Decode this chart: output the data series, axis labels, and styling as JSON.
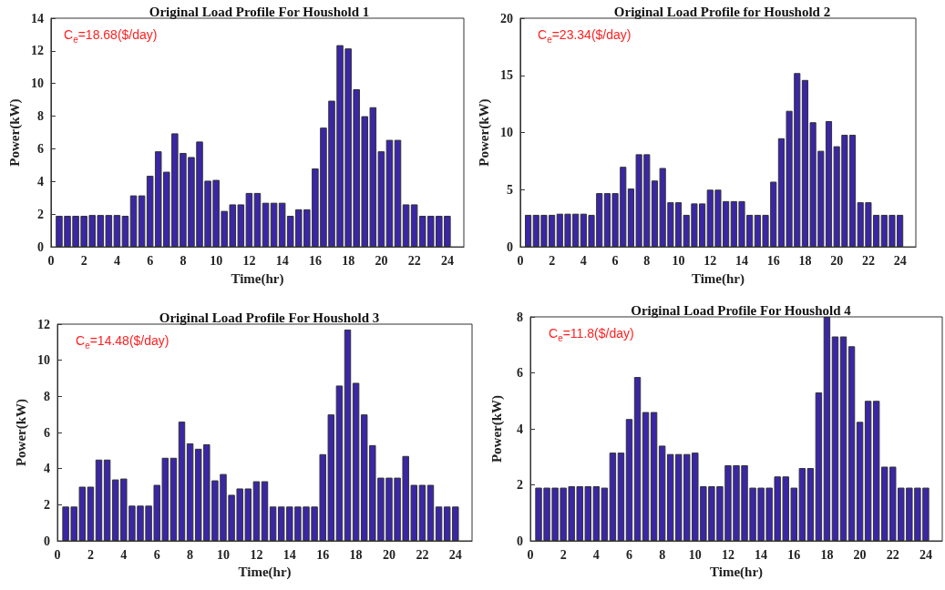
{
  "chart_data": [
    {
      "type": "bar",
      "title": "Original Load Profile For Houshold 1",
      "xlabel": "Time(hr)",
      "ylabel": "Power(kW)",
      "annotations": [
        "C$_{e}$=18.68($/day)"
      ],
      "color": "#3a26a6",
      "xlim": [
        0,
        25
      ],
      "xticks": [
        0,
        2,
        4,
        6,
        8,
        10,
        12,
        14,
        16,
        18,
        20,
        22,
        24
      ],
      "ylim": [
        0,
        14
      ],
      "yticks": [
        0,
        2,
        4,
        6,
        8,
        10,
        12,
        14
      ],
      "grid": false,
      "x": [
        0.5,
        1,
        1.5,
        2,
        2.5,
        3,
        3.5,
        4,
        4.5,
        5,
        5.5,
        6,
        6.5,
        7,
        7.5,
        8,
        8.5,
        9,
        9.5,
        10,
        10.5,
        11,
        11.5,
        12,
        12.5,
        13,
        13.5,
        14,
        14.5,
        15,
        15.5,
        16,
        16.5,
        17,
        17.5,
        18,
        18.5,
        19,
        19.5,
        20,
        20.5,
        21,
        21.5,
        22,
        22.5,
        23,
        23.5,
        24
      ],
      "values": [
        1.9,
        1.9,
        1.9,
        1.9,
        1.95,
        1.95,
        1.95,
        1.95,
        1.9,
        3.15,
        3.15,
        4.35,
        5.85,
        4.6,
        6.95,
        5.75,
        5.5,
        6.45,
        4.05,
        4.1,
        2.2,
        2.6,
        2.6,
        3.3,
        3.3,
        2.7,
        2.7,
        2.7,
        1.9,
        2.3,
        2.3,
        4.8,
        7.3,
        8.95,
        12.35,
        12.15,
        9.65,
        8.0,
        8.55,
        5.85,
        6.55,
        6.55,
        2.6,
        2.6,
        1.9,
        1.9,
        1.9,
        1.9
      ]
    },
    {
      "type": "bar",
      "title": "Original Load Profile for Houshold 2",
      "xlabel": "Time(hr)",
      "ylabel": "Power(kW)",
      "annotations": [
        "C$_{e}$=23.34($/day)"
      ],
      "color": "#3a26a6",
      "xlim": [
        0,
        25
      ],
      "xticks": [
        0,
        2,
        4,
        6,
        8,
        10,
        12,
        14,
        16,
        18,
        20,
        22,
        24
      ],
      "ylim": [
        0,
        20
      ],
      "yticks": [
        0,
        5,
        10,
        15,
        20
      ],
      "grid": false,
      "x": [
        0.5,
        1,
        1.5,
        2,
        2.5,
        3,
        3.5,
        4,
        4.5,
        5,
        5.5,
        6,
        6.5,
        7,
        7.5,
        8,
        8.5,
        9,
        9.5,
        10,
        10.5,
        11,
        11.5,
        12,
        12.5,
        13,
        13.5,
        14,
        14.5,
        15,
        15.5,
        16,
        16.5,
        17,
        17.5,
        18,
        18.5,
        19,
        19.5,
        20,
        20.5,
        21,
        21.5,
        22,
        22.5,
        23,
        23.5,
        24
      ],
      "values": [
        2.8,
        2.8,
        2.8,
        2.8,
        2.9,
        2.9,
        2.9,
        2.9,
        2.8,
        4.7,
        4.7,
        4.7,
        7.0,
        5.1,
        8.1,
        8.1,
        5.8,
        6.9,
        3.9,
        3.9,
        2.8,
        3.8,
        3.8,
        5.0,
        5.0,
        4.0,
        4.0,
        4.0,
        2.8,
        2.8,
        2.8,
        5.7,
        9.5,
        11.9,
        15.2,
        14.6,
        10.9,
        8.4,
        11.0,
        8.8,
        9.8,
        9.8,
        3.9,
        3.9,
        2.8,
        2.8,
        2.8,
        2.8
      ]
    },
    {
      "type": "bar",
      "title": "Original Load Profile For Houshold 3",
      "xlabel": "Time(hr)",
      "ylabel": "Power(kW)",
      "annotations": [
        "C$_{e}$=14.48($/day)"
      ],
      "color": "#3a26a6",
      "xlim": [
        0,
        25
      ],
      "xticks": [
        0,
        2,
        4,
        6,
        8,
        10,
        12,
        14,
        16,
        18,
        20,
        22,
        24
      ],
      "ylim": [
        0,
        12
      ],
      "yticks": [
        0,
        2,
        4,
        6,
        8,
        10,
        12
      ],
      "grid": false,
      "x": [
        0.5,
        1,
        1.5,
        2,
        2.5,
        3,
        3.5,
        4,
        4.5,
        5,
        5.5,
        6,
        6.5,
        7,
        7.5,
        8,
        8.5,
        9,
        9.5,
        10,
        10.5,
        11,
        11.5,
        12,
        12.5,
        13,
        13.5,
        14,
        14.5,
        15,
        15.5,
        16,
        16.5,
        17,
        17.5,
        18,
        18.5,
        19,
        19.5,
        20,
        20.5,
        21,
        21.5,
        22,
        22.5,
        23,
        23.5,
        24
      ],
      "values": [
        1.9,
        1.9,
        3.0,
        3.0,
        4.5,
        4.5,
        3.4,
        3.45,
        1.95,
        1.95,
        1.95,
        3.1,
        4.6,
        4.6,
        6.6,
        5.4,
        5.1,
        5.35,
        3.35,
        3.7,
        2.55,
        2.9,
        2.9,
        3.3,
        3.3,
        1.9,
        1.9,
        1.9,
        1.9,
        1.9,
        1.9,
        4.8,
        7.0,
        8.6,
        11.7,
        8.75,
        7.0,
        5.3,
        3.5,
        3.5,
        3.5,
        4.7,
        3.1,
        3.1,
        3.1,
        1.9,
        1.9,
        1.9
      ]
    },
    {
      "type": "bar",
      "title": "Original Load Profile For Houshold 4",
      "xlabel": "Time(hr)",
      "ylabel": "Power(kW)",
      "annotations": [
        "C$_{e}$=11.8($/day)"
      ],
      "color": "#3a26a6",
      "xlim": [
        0,
        25
      ],
      "xticks": [
        0,
        2,
        4,
        6,
        8,
        10,
        12,
        14,
        16,
        18,
        20,
        22,
        24
      ],
      "ylim": [
        0,
        8
      ],
      "yticks": [
        0,
        2,
        4,
        6,
        8
      ],
      "grid": false,
      "x": [
        0.5,
        1,
        1.5,
        2,
        2.5,
        3,
        3.5,
        4,
        4.5,
        5,
        5.5,
        6,
        6.5,
        7,
        7.5,
        8,
        8.5,
        9,
        9.5,
        10,
        10.5,
        11,
        11.5,
        12,
        12.5,
        13,
        13.5,
        14,
        14.5,
        15,
        15.5,
        16,
        16.5,
        17,
        17.5,
        18,
        18.5,
        19,
        19.5,
        20,
        20.5,
        21,
        21.5,
        22,
        22.5,
        23,
        23.5,
        24
      ],
      "values": [
        1.9,
        1.9,
        1.9,
        1.9,
        1.95,
        1.95,
        1.95,
        1.95,
        1.9,
        3.15,
        3.15,
        4.35,
        5.85,
        4.6,
        4.6,
        3.4,
        3.1,
        3.1,
        3.1,
        3.15,
        1.95,
        1.95,
        1.95,
        2.7,
        2.7,
        2.7,
        1.9,
        1.9,
        1.9,
        2.3,
        2.3,
        1.9,
        2.6,
        2.6,
        5.3,
        8.0,
        7.3,
        7.3,
        6.95,
        4.25,
        5.0,
        5.0,
        2.65,
        2.65,
        1.9,
        1.9,
        1.9,
        1.9
      ]
    }
  ]
}
